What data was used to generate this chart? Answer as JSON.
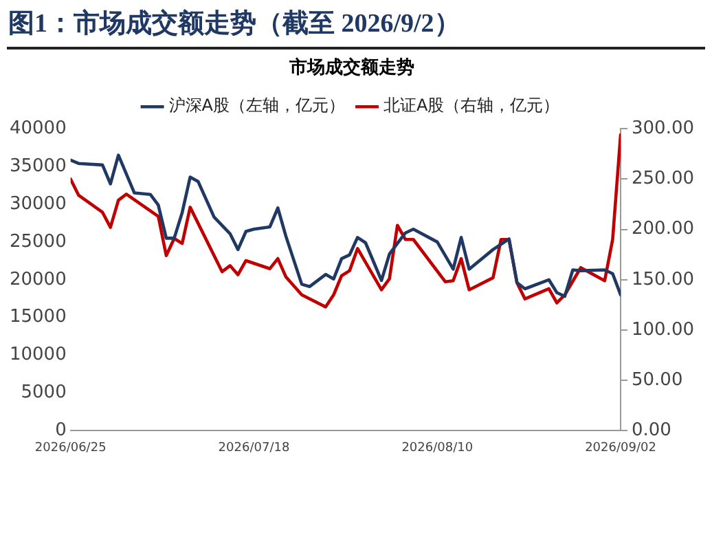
{
  "chart_data": {
    "type": "line",
    "title": "图1：市场成交额走势（截至 2026/9/2）",
    "subtitle": "市场成交额走势",
    "xlim": [
      "2026-06-25",
      "2026-09-02"
    ],
    "xticks": [
      {
        "value": "2026-06-25",
        "label": "2026/06/25"
      },
      {
        "value": "2026-07-18",
        "label": "2026/07/18"
      },
      {
        "value": "2026-08-10",
        "label": "2026/08/10"
      },
      {
        "value": "2026-09-02",
        "label": "2026/09/02"
      }
    ],
    "ylim": [
      0,
      40000
    ],
    "yticks": [
      0,
      5000,
      10000,
      15000,
      20000,
      25000,
      30000,
      35000,
      40000
    ],
    "y2lim": [
      0,
      300
    ],
    "y2ticks": [
      {
        "value": 0,
        "label": "0.00"
      },
      {
        "value": 50,
        "label": "50.00"
      },
      {
        "value": 100,
        "label": "100.00"
      },
      {
        "value": 150,
        "label": "150.00"
      },
      {
        "value": 200,
        "label": "200.00"
      },
      {
        "value": 250,
        "label": "250.00"
      },
      {
        "value": 300,
        "label": "300.00"
      }
    ],
    "grid": false,
    "legend": "top",
    "marker": "none",
    "line_style": "solid",
    "series": [
      {
        "name": "沪深A股（左轴，亿元）",
        "color": "#203864",
        "axis": "y",
        "x": [
          "2026-06-25",
          "2026-06-26",
          "2026-06-29",
          "2026-06-30",
          "2026-07-01",
          "2026-07-03",
          "2026-07-05",
          "2026-07-06",
          "2026-07-07",
          "2026-07-08",
          "2026-07-09",
          "2026-07-10",
          "2026-07-11",
          "2026-07-13",
          "2026-07-15",
          "2026-07-16",
          "2026-07-17",
          "2026-07-18",
          "2026-07-20",
          "2026-07-21",
          "2026-07-22",
          "2026-07-24",
          "2026-07-25",
          "2026-07-27",
          "2026-07-28",
          "2026-07-29",
          "2026-07-30",
          "2026-07-31",
          "2026-08-01",
          "2026-08-03",
          "2026-08-04",
          "2026-08-06",
          "2026-08-07",
          "2026-08-10",
          "2026-08-12",
          "2026-08-13",
          "2026-08-14",
          "2026-08-17",
          "2026-08-19",
          "2026-08-20",
          "2026-08-21",
          "2026-08-24",
          "2026-08-25",
          "2026-08-26",
          "2026-08-27",
          "2026-08-28",
          "2026-08-31",
          "2026-09-01",
          "2026-09-02"
        ],
        "values": [
          35850,
          35400,
          35200,
          32700,
          36500,
          31500,
          31300,
          29900,
          25500,
          25500,
          28900,
          33600,
          33000,
          28300,
          26100,
          24000,
          26400,
          26700,
          27000,
          29500,
          25800,
          19400,
          19100,
          20700,
          20100,
          22800,
          23300,
          25600,
          24900,
          19900,
          23400,
          26200,
          26700,
          25000,
          21400,
          25600,
          21400,
          24000,
          25400,
          19600,
          18800,
          20000,
          18300,
          17800,
          21300,
          21200,
          21300,
          20800,
          18000
        ]
      },
      {
        "name": "北证A股（右轴，亿元）",
        "color": "#c00000",
        "axis": "y2",
        "x": [
          "2026-06-25",
          "2026-06-26",
          "2026-06-29",
          "2026-06-30",
          "2026-07-01",
          "2026-07-02",
          "2026-07-06",
          "2026-07-07",
          "2026-07-08",
          "2026-07-09",
          "2026-07-10",
          "2026-07-14",
          "2026-07-15",
          "2026-07-16",
          "2026-07-17",
          "2026-07-20",
          "2026-07-21",
          "2026-07-22",
          "2026-07-24",
          "2026-07-27",
          "2026-07-28",
          "2026-07-29",
          "2026-07-30",
          "2026-07-31",
          "2026-08-03",
          "2026-08-04",
          "2026-08-05",
          "2026-08-06",
          "2026-08-07",
          "2026-08-11",
          "2026-08-12",
          "2026-08-13",
          "2026-08-14",
          "2026-08-17",
          "2026-08-18",
          "2026-08-19",
          "2026-08-20",
          "2026-08-21",
          "2026-08-24",
          "2026-08-25",
          "2026-08-26",
          "2026-08-28",
          "2026-08-31",
          "2026-09-01",
          "2026-09-02"
        ],
        "values": [
          250,
          234,
          217,
          202,
          229,
          235,
          213,
          174,
          191,
          186,
          222,
          158,
          164,
          155,
          169,
          161,
          171,
          153,
          135,
          123,
          135,
          154,
          159,
          181,
          140,
          151,
          204,
          190,
          190,
          148,
          149,
          171,
          140,
          152,
          190,
          190,
          147,
          131,
          141,
          127,
          135,
          162,
          149,
          190,
          294
        ]
      }
    ]
  }
}
